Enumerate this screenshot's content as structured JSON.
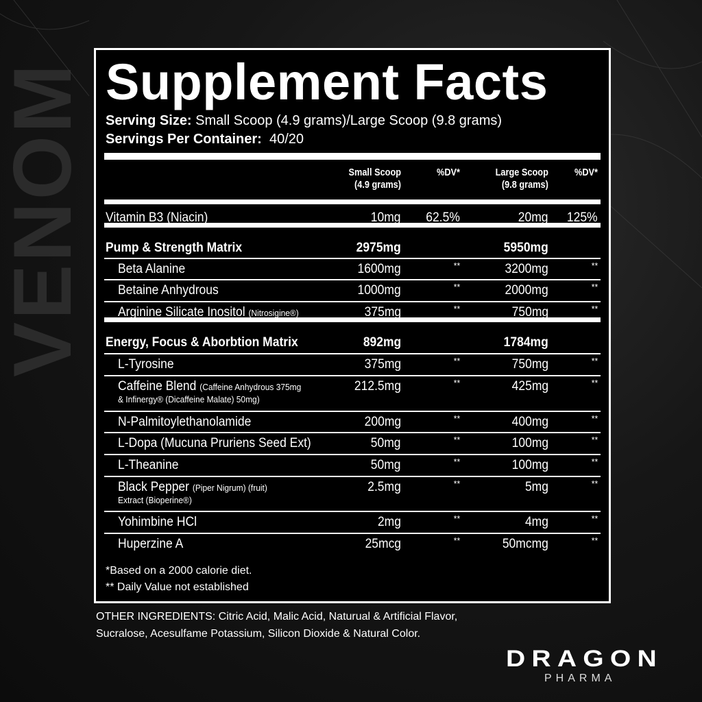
{
  "background_text": "VENOM",
  "title": "Supplement Facts",
  "serving_size_label": "Serving Size:",
  "serving_size_value": "Small Scoop (4.9 grams)/Large Scoop (9.8 grams)",
  "servings_label": "Servings Per Container:",
  "servings_value": "40/20",
  "headers": {
    "small_1": "Small Scoop",
    "small_2": "(4.9 grams)",
    "dv1": "%DV*",
    "large_1": "Large Scoop",
    "large_2": "(9.8 grams)",
    "dv2": "%DV*"
  },
  "rows": [
    {
      "name": "Vitamin B3 (Niacin)",
      "small": "10mg",
      "dv1": "62.5%",
      "large": "20mg",
      "dv2": "125%"
    },
    {
      "name": "Pump & Strength Matrix",
      "small": "2975mg",
      "dv1": "",
      "large": "5950mg",
      "dv2": "",
      "bold": true
    },
    {
      "name": "Beta Alanine",
      "small": "1600mg",
      "dv1": "**",
      "large": "3200mg",
      "dv2": "**",
      "indent": true
    },
    {
      "name": "Betaine Anhydrous",
      "small": "1000mg",
      "dv1": "**",
      "large": "2000mg",
      "dv2": "**",
      "indent": true
    },
    {
      "name": "Arginine Silicate Inositol",
      "note": "(Nitrosigine®)",
      "small": "375mg",
      "dv1": "**",
      "large": "750mg",
      "dv2": "**",
      "indent": true
    },
    {
      "name": "Energy, Focus & Aborbtion Matrix",
      "small": "892mg",
      "dv1": "",
      "large": "1784mg",
      "dv2": "",
      "bold": true
    },
    {
      "name": "L-Tyrosine",
      "small": "375mg",
      "dv1": "**",
      "large": "750mg",
      "dv2": "**",
      "indent": true
    },
    {
      "name": "Caffeine Blend",
      "note": "(Caffeine Anhydrous 375mg",
      "note2": "& Infinergy® (Dicaffeine Malate) 50mg)",
      "small": "212.5mg",
      "dv1": "**",
      "large": "425mg",
      "dv2": "**",
      "indent": true
    },
    {
      "name": "N-Palmitoylethanolamide",
      "small": "200mg",
      "dv1": "**",
      "large": "400mg",
      "dv2": "**",
      "indent": true
    },
    {
      "name": "L-Dopa (Mucuna Pruriens Seed Ext)",
      "small": "50mg",
      "dv1": "**",
      "large": "100mg",
      "dv2": "**",
      "indent": true
    },
    {
      "name": "L-Theanine",
      "small": "50mg",
      "dv1": "**",
      "large": "100mg",
      "dv2": "**",
      "indent": true
    },
    {
      "name": "Black Pepper",
      "note": "(Piper Nigrum) (fruit)",
      "note2": "Extract (Bioperine®)",
      "small": "2.5mg",
      "dv1": "**",
      "large": "5mg",
      "dv2": "**",
      "indent": true
    },
    {
      "name": "Yohimbine HCl",
      "small": "2mg",
      "dv1": "**",
      "large": "4mg",
      "dv2": "**",
      "indent": true
    },
    {
      "name": "Huperzine A",
      "small": "25mcg",
      "dv1": "**",
      "large": "50mcmg",
      "dv2": "**",
      "indent": true
    }
  ],
  "footnote1": "*Based on a 2000 calorie diet.",
  "footnote2": "** Daily Value not established",
  "other_ingredients_1": "OTHER INGREDIENTS:  Citric Acid, Malic Acid, Naturual & Artificial Flavor,",
  "other_ingredients_2": "Sucralose, Acesulfame Potassium, Silicon Dioxide & Natural Color.",
  "brand": {
    "name": "DRAGON",
    "sub": "PHARMA"
  }
}
